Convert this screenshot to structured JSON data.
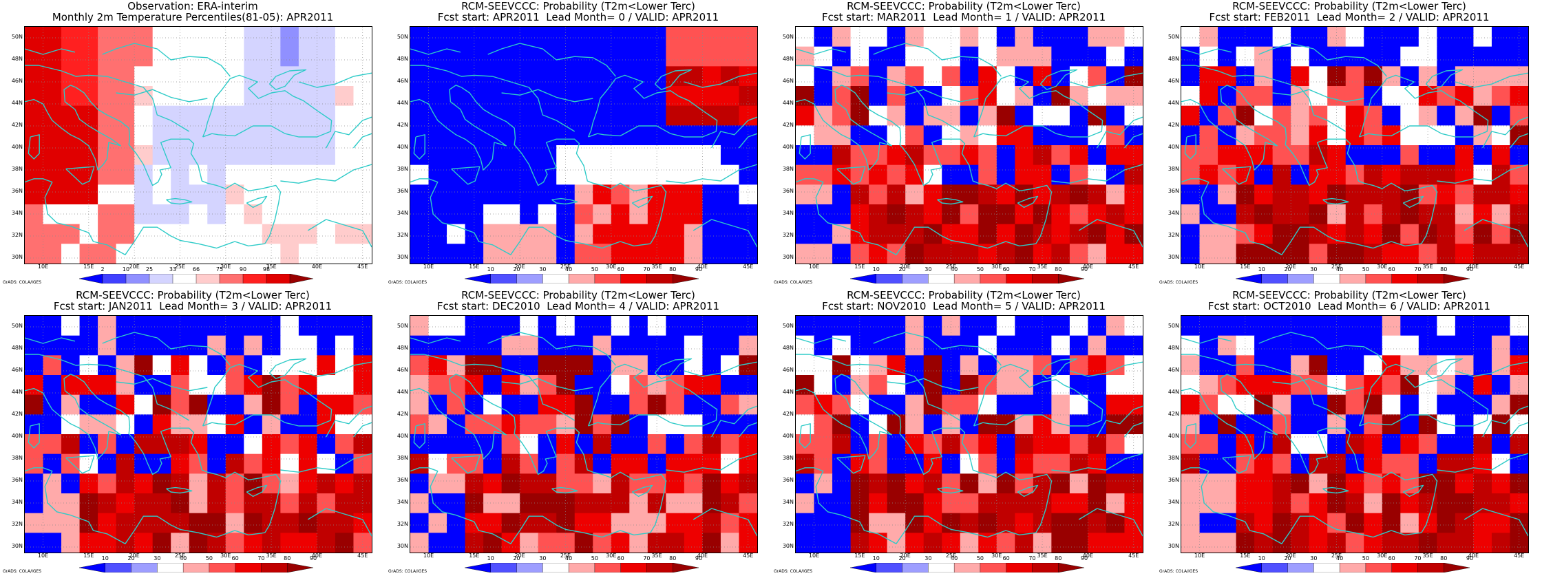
{
  "credit": "GrADS: COLA/IGES",
  "lat_labels": [
    "50N",
    "48N",
    "46N",
    "44N",
    "42N",
    "40N",
    "38N",
    "36N",
    "34N",
    "32N",
    "30N"
  ],
  "lon_labels": [
    "10E",
    "15E",
    "20E",
    "25E",
    "30E",
    "35E",
    "40E",
    "45E"
  ],
  "map": {
    "lon_range": [
      8,
      46
    ],
    "lat_range": [
      29.5,
      51
    ],
    "grid": "dotted",
    "coastline_color": "#2ecbc8"
  },
  "colors": {
    "observation_scale": [
      "#0000ff",
      "#4040ff",
      "#9090ff",
      "#d4d4ff",
      "#ffffff",
      "#ffcccc",
      "#ff7070",
      "#ff2020",
      "#e00000",
      "#990000"
    ],
    "probability_scale": [
      "#0000ff",
      "#5050ff",
      "#9e9eff",
      "#ffffff",
      "#ffaaaa",
      "#ff5252",
      "#ee0000",
      "#c00000",
      "#990000"
    ]
  },
  "panels": [
    {
      "title1": "Observation: ERA-interim",
      "title2": "Monthly 2m Temperature Percentiles(81-05): APR2011",
      "scale": "obs",
      "ticks": [
        "2",
        "10",
        "25",
        "33",
        "66",
        "75",
        "90",
        "98"
      ],
      "seed": 11,
      "pattern": "obs"
    },
    {
      "title1": "RCM-SEEVCCC: Probability (T2m<Lower Terc)",
      "title2": "Fcst start: APR2011  Lead Month= 0 / VALID: APR2011",
      "scale": "prob",
      "ticks": [
        "10",
        "20",
        "30",
        "40",
        "50",
        "60",
        "70",
        "80",
        "90"
      ],
      "seed": 23,
      "pattern": "lead0"
    },
    {
      "title1": "RCM-SEEVCCC: Probability (T2m<Lower Terc)",
      "title2": "Fcst start: MAR2011  Lead Month= 1 / VALID: APR2011",
      "scale": "prob",
      "ticks": [
        "10",
        "20",
        "30",
        "40",
        "50",
        "60",
        "70",
        "80",
        "90"
      ],
      "seed": 37,
      "pattern": "lead"
    },
    {
      "title1": "RCM-SEEVCCC: Probability (T2m<Lower Terc)",
      "title2": "Fcst start: FEB2011  Lead Month= 2 / VALID: APR2011",
      "scale": "prob",
      "ticks": [
        "10",
        "20",
        "30",
        "40",
        "50",
        "60",
        "70",
        "80",
        "90"
      ],
      "seed": 41,
      "pattern": "lead"
    },
    {
      "title1": "RCM-SEEVCCC: Probability (T2m<Lower Terc)",
      "title2": "Fcst start: JAN2011  Lead Month= 3 / VALID: APR2011",
      "scale": "prob",
      "ticks": [
        "10",
        "20",
        "30",
        "40",
        "50",
        "60",
        "70",
        "80",
        "90"
      ],
      "seed": 53,
      "pattern": "lead"
    },
    {
      "title1": "RCM-SEEVCCC: Probability (T2m<Lower Terc)",
      "title2": "Fcst start: DEC2010  Lead Month= 4 / VALID: APR2011",
      "scale": "prob",
      "ticks": [
        "10",
        "20",
        "30",
        "40",
        "50",
        "60",
        "70",
        "80",
        "90"
      ],
      "seed": 67,
      "pattern": "lead"
    },
    {
      "title1": "RCM-SEEVCCC: Probability (T2m<Lower Terc)",
      "title2": "Fcst start: NOV2010  Lead Month= 5 / VALID: APR2011",
      "scale": "prob",
      "ticks": [
        "10",
        "20",
        "30",
        "40",
        "50",
        "60",
        "70",
        "80",
        "90"
      ],
      "seed": 71,
      "pattern": "lead"
    },
    {
      "title1": "RCM-SEEVCCC: Probability (T2m<Lower Terc)",
      "title2": "Fcst start: OCT2010  Lead Month= 6 / VALID: APR2011",
      "scale": "prob",
      "ticks": [
        "10",
        "20",
        "30",
        "40",
        "50",
        "60",
        "70",
        "80",
        "90"
      ],
      "seed": 83,
      "pattern": "lead"
    }
  ]
}
